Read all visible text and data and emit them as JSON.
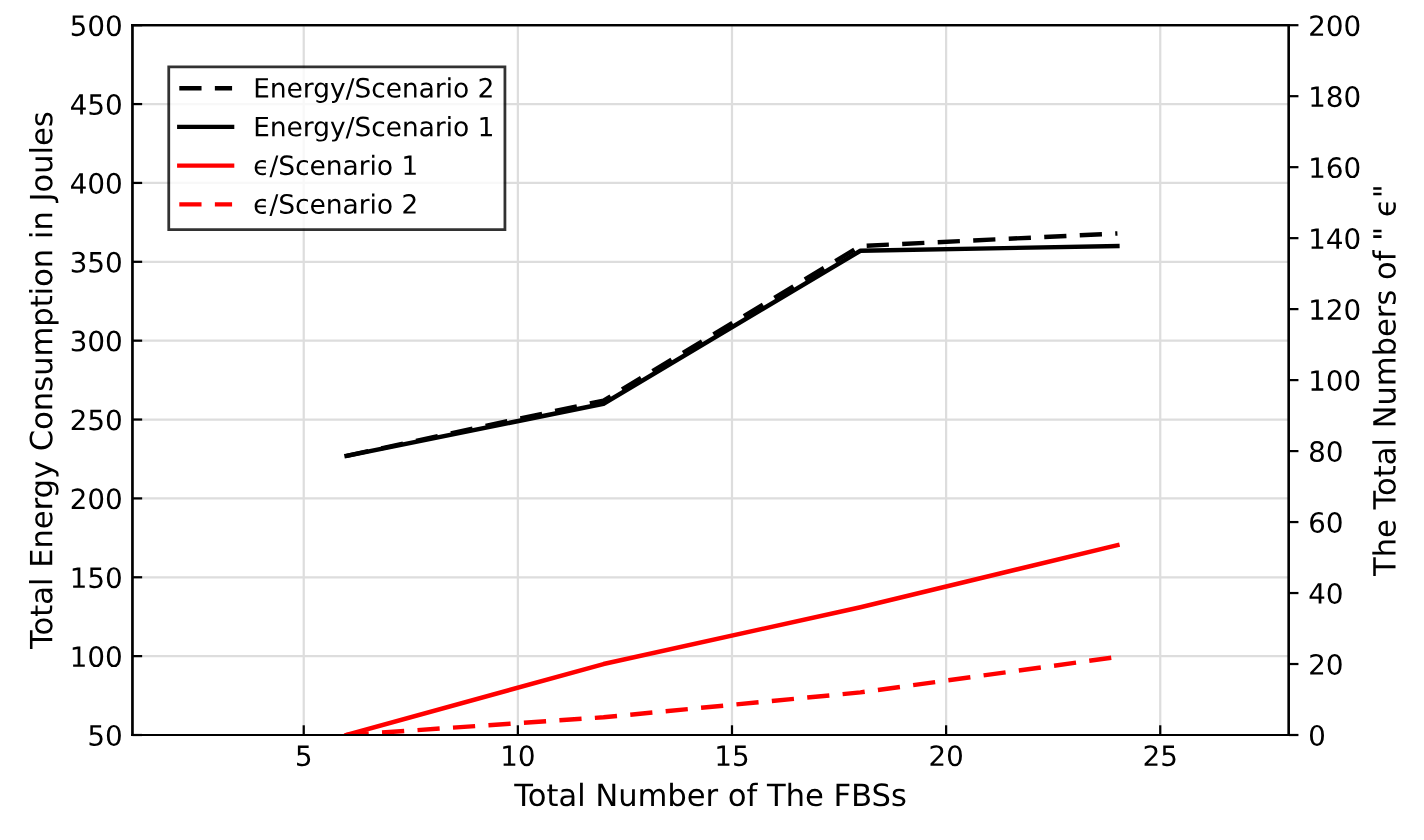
{
  "chart_data": {
    "type": "line",
    "xlabel": "Total Number of The FBSs",
    "ylabel": "Total Energy Consumption in Joules",
    "y2label": "The Total Numbers of \" ϵ\"",
    "x": [
      6,
      12,
      18,
      24
    ],
    "series": [
      {
        "name": "Energy/Scenario 2",
        "color": "#000000",
        "line_style": "dashed",
        "values": [
          227,
          262,
          360,
          368
        ]
      },
      {
        "name": "Energy/Scenario 1",
        "color": "#000000",
        "line_style": "solid",
        "values": [
          227,
          260,
          357,
          360
        ]
      },
      {
        "name": "ϵ/Scenario 1",
        "color": "#ff0000",
        "line_style": "solid",
        "axis": "y2",
        "values": [
          0,
          20,
          36,
          53.5
        ]
      },
      {
        "name": "ϵ/Scenario 2",
        "color": "#ff0000",
        "line_style": "dashed",
        "axis": "y2",
        "values": [
          0,
          5,
          12,
          22
        ]
      }
    ],
    "xlim": [
      1,
      28
    ],
    "xticks": [
      5,
      10,
      15,
      20,
      25
    ],
    "ylim": [
      50,
      500
    ],
    "yticks": [
      50,
      100,
      150,
      200,
      250,
      300,
      350,
      400,
      450,
      500
    ],
    "y2lim": [
      0,
      200
    ],
    "y2ticks": [
      0,
      20,
      40,
      60,
      80,
      100,
      120,
      140,
      160,
      180,
      200
    ],
    "grid": true,
    "legend": "top left",
    "marker": "none"
  }
}
